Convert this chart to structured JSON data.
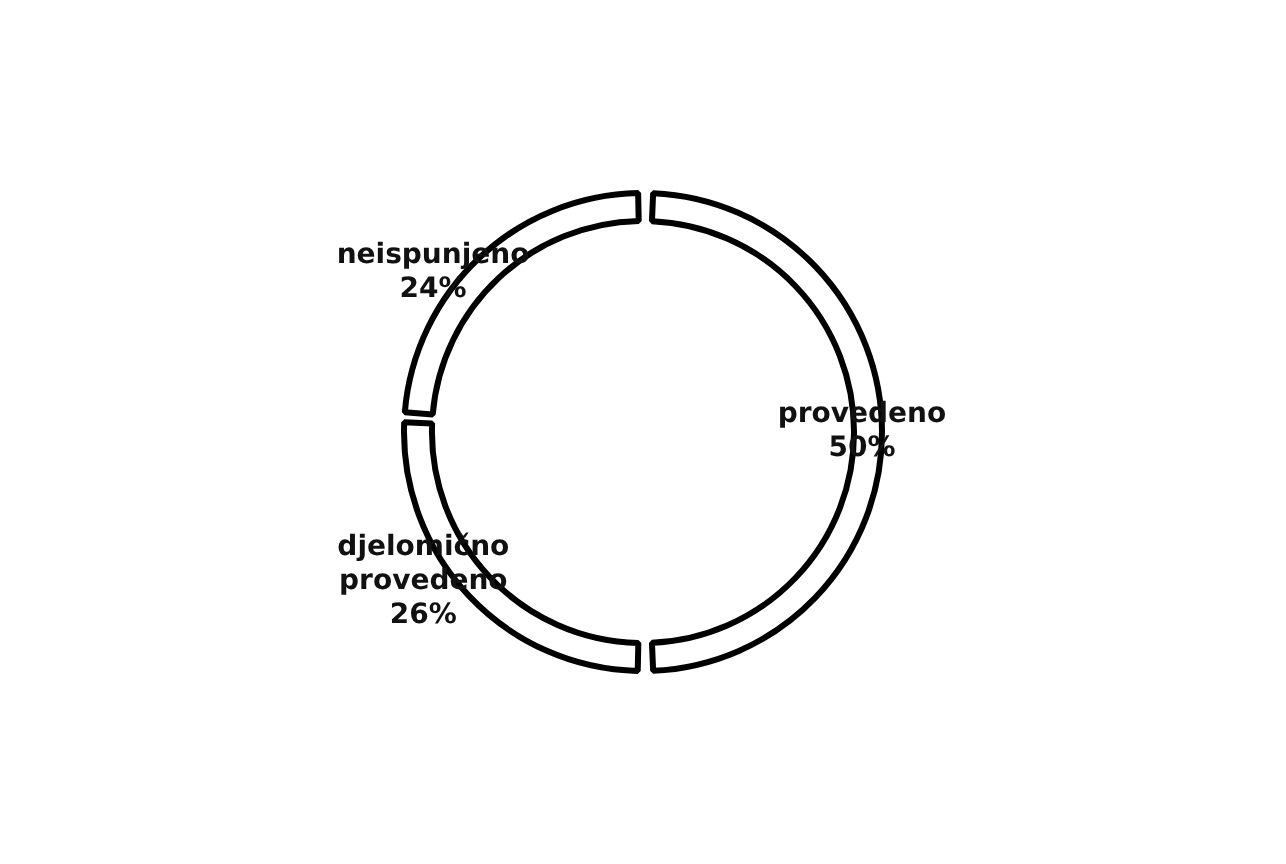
{
  "chart_data": {
    "type": "donut",
    "categories": [
      "provedeno",
      "djelomično provedeno",
      "neispunjeno"
    ],
    "values": [
      50,
      26,
      24
    ],
    "value_labels": [
      "50%",
      "26%",
      "24%"
    ],
    "colors": [
      "#ffffff",
      "#ffffff",
      "#ffffff"
    ],
    "legend": false
  }
}
